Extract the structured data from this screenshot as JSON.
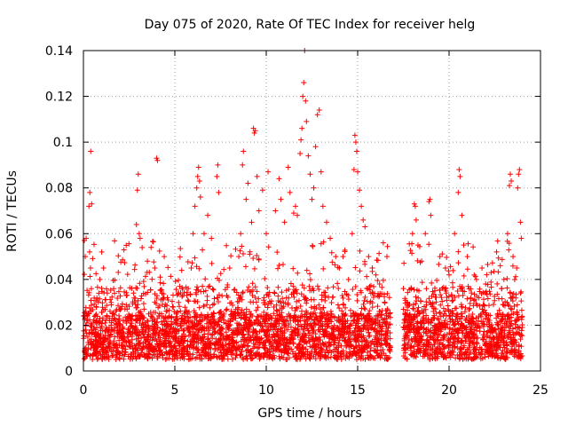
{
  "chart_data": {
    "type": "scatter",
    "title": "Day 075 of 2020, Rate Of TEC Index for receiver helg",
    "xlabel": "GPS time / hours",
    "ylabel": "ROTI / TECUs",
    "xlim": [
      0,
      25
    ],
    "ylim": [
      0,
      0.14
    ],
    "x_ticks": [
      0,
      5,
      10,
      15,
      20,
      25
    ],
    "x_tick_labels": [
      "0",
      "5",
      "10",
      "15",
      "20",
      "25"
    ],
    "y_ticks": [
      0,
      0.02,
      0.04,
      0.06,
      0.08,
      0.1,
      0.12,
      0.14
    ],
    "y_tick_labels": [
      "0",
      "0.02",
      "0.04",
      "0.06",
      "0.08",
      "0.1",
      "0.12",
      "0.14"
    ],
    "grid": true,
    "marker": "plus",
    "color": "#ff0000",
    "data_gap_hours": [
      16.8,
      17.5
    ],
    "series": [
      {
        "name": "ROTI",
        "dense_band": {
          "x_ranges": [
            [
              0.0,
              16.8
            ],
            [
              17.5,
              24.0
            ]
          ],
          "typical_y_range": [
            0.005,
            0.025
          ]
        },
        "points": [
          [
            0.05,
            0.057
          ],
          [
            0.1,
            0.05
          ],
          [
            0.15,
            0.058
          ],
          [
            0.3,
            0.072
          ],
          [
            0.35,
            0.078
          ],
          [
            0.4,
            0.096
          ],
          [
            0.45,
            0.073
          ],
          [
            0.9,
            0.04
          ],
          [
            1.0,
            0.052
          ],
          [
            1.1,
            0.045
          ],
          [
            2.9,
            0.064
          ],
          [
            2.95,
            0.079
          ],
          [
            3.0,
            0.086
          ],
          [
            3.05,
            0.06
          ],
          [
            3.1,
            0.058
          ],
          [
            3.5,
            0.048
          ],
          [
            3.7,
            0.054
          ],
          [
            3.9,
            0.045
          ],
          [
            4.0,
            0.093
          ],
          [
            4.05,
            0.092
          ],
          [
            4.2,
            0.041
          ],
          [
            5.9,
            0.045
          ],
          [
            6.0,
            0.06
          ],
          [
            6.1,
            0.072
          ],
          [
            6.2,
            0.08
          ],
          [
            6.25,
            0.085
          ],
          [
            6.3,
            0.089
          ],
          [
            6.35,
            0.083
          ],
          [
            6.4,
            0.076
          ],
          [
            6.6,
            0.06
          ],
          [
            6.8,
            0.068
          ],
          [
            7.0,
            0.058
          ],
          [
            7.3,
            0.085
          ],
          [
            7.35,
            0.09
          ],
          [
            7.4,
            0.078
          ],
          [
            8.0,
            0.045
          ],
          [
            8.5,
            0.05
          ],
          [
            8.6,
            0.06
          ],
          [
            8.7,
            0.09
          ],
          [
            8.75,
            0.096
          ],
          [
            8.9,
            0.075
          ],
          [
            9.0,
            0.082
          ],
          [
            9.2,
            0.065
          ],
          [
            9.3,
            0.106
          ],
          [
            9.35,
            0.104
          ],
          [
            9.4,
            0.105
          ],
          [
            9.5,
            0.085
          ],
          [
            9.6,
            0.07
          ],
          [
            9.8,
            0.079
          ],
          [
            10.0,
            0.06
          ],
          [
            10.1,
            0.087
          ],
          [
            10.5,
            0.07
          ],
          [
            10.7,
            0.084
          ],
          [
            10.8,
            0.075
          ],
          [
            11.0,
            0.065
          ],
          [
            11.2,
            0.089
          ],
          [
            11.3,
            0.078
          ],
          [
            11.5,
            0.069
          ],
          [
            11.6,
            0.072
          ],
          [
            11.7,
            0.068
          ],
          [
            11.85,
            0.095
          ],
          [
            11.9,
            0.101
          ],
          [
            11.95,
            0.106
          ],
          [
            12.0,
            0.12
          ],
          [
            12.05,
            0.126
          ],
          [
            12.1,
            0.14
          ],
          [
            12.15,
            0.118
          ],
          [
            12.2,
            0.109
          ],
          [
            12.3,
            0.094
          ],
          [
            12.4,
            0.086
          ],
          [
            12.5,
            0.075
          ],
          [
            12.6,
            0.08
          ],
          [
            12.7,
            0.098
          ],
          [
            12.8,
            0.112
          ],
          [
            12.9,
            0.114
          ],
          [
            13.0,
            0.087
          ],
          [
            13.1,
            0.072
          ],
          [
            13.3,
            0.065
          ],
          [
            13.5,
            0.058
          ],
          [
            13.8,
            0.05
          ],
          [
            14.0,
            0.045
          ],
          [
            14.2,
            0.05
          ],
          [
            14.5,
            0.04
          ],
          [
            14.7,
            0.06
          ],
          [
            14.8,
            0.088
          ],
          [
            14.85,
            0.103
          ],
          [
            14.9,
            0.1
          ],
          [
            14.95,
            0.096
          ],
          [
            15.0,
            0.087
          ],
          [
            15.1,
            0.079
          ],
          [
            15.2,
            0.072
          ],
          [
            15.3,
            0.066
          ],
          [
            15.4,
            0.063
          ],
          [
            15.6,
            0.05
          ],
          [
            15.8,
            0.045
          ],
          [
            16.0,
            0.042
          ],
          [
            16.2,
            0.038
          ],
          [
            16.4,
            0.056
          ],
          [
            16.6,
            0.05
          ],
          [
            17.5,
            0.036
          ],
          [
            17.6,
            0.025
          ],
          [
            17.7,
            0.03
          ],
          [
            18.0,
            0.06
          ],
          [
            18.1,
            0.073
          ],
          [
            18.15,
            0.072
          ],
          [
            18.2,
            0.066
          ],
          [
            18.3,
            0.055
          ],
          [
            18.5,
            0.048
          ],
          [
            18.7,
            0.06
          ],
          [
            18.9,
            0.074
          ],
          [
            18.95,
            0.075
          ],
          [
            19.0,
            0.068
          ],
          [
            19.5,
            0.05
          ],
          [
            19.8,
            0.045
          ],
          [
            20.0,
            0.042
          ],
          [
            20.3,
            0.06
          ],
          [
            20.5,
            0.078
          ],
          [
            20.55,
            0.088
          ],
          [
            20.6,
            0.085
          ],
          [
            20.7,
            0.068
          ],
          [
            20.8,
            0.055
          ],
          [
            21.0,
            0.05
          ],
          [
            21.5,
            0.04
          ],
          [
            21.8,
            0.045
          ],
          [
            22.0,
            0.038
          ],
          [
            22.3,
            0.043
          ],
          [
            22.6,
            0.052
          ],
          [
            22.8,
            0.046
          ],
          [
            23.0,
            0.04
          ],
          [
            23.2,
            0.06
          ],
          [
            23.3,
            0.081
          ],
          [
            23.35,
            0.086
          ],
          [
            23.4,
            0.083
          ],
          [
            23.5,
            0.05
          ],
          [
            23.7,
            0.045
          ],
          [
            23.75,
            0.08
          ],
          [
            23.8,
            0.086
          ],
          [
            23.85,
            0.088
          ],
          [
            23.9,
            0.065
          ],
          [
            23.95,
            0.058
          ]
        ]
      }
    ]
  }
}
